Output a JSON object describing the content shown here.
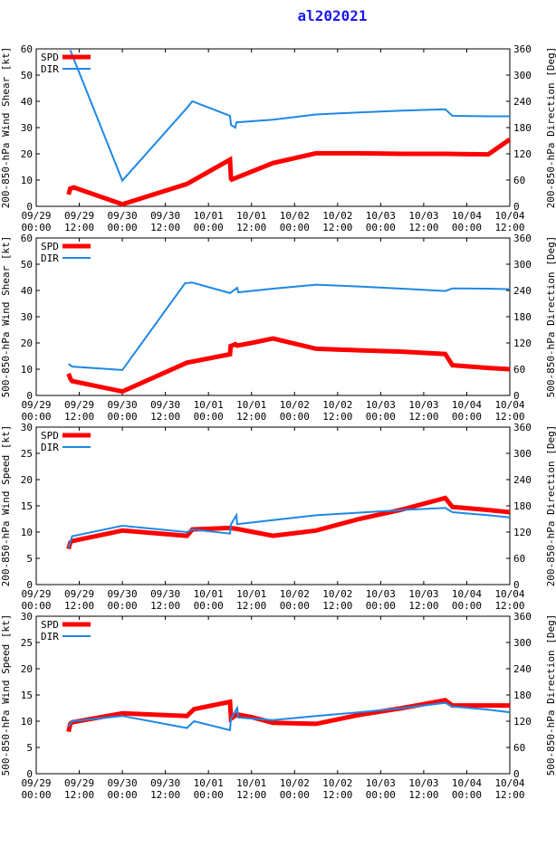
{
  "title": "al202021",
  "colors": {
    "spd": "#ff0000",
    "dir": "#1e88e5",
    "axis": "#000000",
    "title": "#1a1aee"
  },
  "x_tick_labels": [
    [
      "09/29",
      "00:00"
    ],
    [
      "09/29",
      "12:00"
    ],
    [
      "09/30",
      "00:00"
    ],
    [
      "09/30",
      "12:00"
    ],
    [
      "10/01",
      "00:00"
    ],
    [
      "10/01",
      "12:00"
    ],
    [
      "10/02",
      "00:00"
    ],
    [
      "10/02",
      "12:00"
    ],
    [
      "10/03",
      "00:00"
    ],
    [
      "10/03",
      "12:00"
    ],
    [
      "10/04",
      "00:00"
    ],
    [
      "10/04",
      "12:00"
    ]
  ],
  "chart_data": [
    {
      "type": "line",
      "ylabel": "200-850-hPa Wind Shear [kt]",
      "y2label": "200-850-hPa Direction [Deg]",
      "xlim": [
        0,
        132
      ],
      "ylim": [
        0,
        60
      ],
      "yticks": [
        0,
        10,
        20,
        30,
        40,
        50,
        60
      ],
      "y2lim": [
        0,
        360
      ],
      "y2ticks": [
        0,
        60,
        120,
        180,
        240,
        300,
        360
      ],
      "legend": [
        "SPD",
        "DIR"
      ],
      "series": [
        {
          "name": "SPD",
          "axis": "left",
          "x": [
            9,
            9.5,
            10.5,
            24,
            42,
            54,
            54.3,
            54.5,
            66,
            78,
            90,
            102,
            114,
            126,
            132
          ],
          "y": [
            4.5,
            6.8,
            7.2,
            0.8,
            8.5,
            17.8,
            10.5,
            10.2,
            16.5,
            20.2,
            20.2,
            20,
            20,
            19.8,
            25.5
          ]
        },
        {
          "name": "DIR",
          "axis": "left",
          "x": [
            9.5,
            24,
            42,
            43.5,
            54,
            54.3,
            55.5,
            55.8,
            66,
            78,
            90,
            102,
            114,
            116,
            126,
            132
          ],
          "y": [
            59.5,
            9.8,
            37.5,
            40,
            34.5,
            31,
            30,
            32,
            33,
            35,
            35.8,
            36.5,
            37,
            34.5,
            34.3,
            34.3
          ]
        }
      ]
    },
    {
      "type": "line",
      "ylabel": "500-850-hPa Wind Shear [kt]",
      "y2label": "500-850-hPa Direction [Deg]",
      "xlim": [
        0,
        132
      ],
      "ylim": [
        0,
        60
      ],
      "yticks": [
        0,
        10,
        20,
        30,
        40,
        50,
        60
      ],
      "y2lim": [
        0,
        360
      ],
      "y2ticks": [
        0,
        60,
        120,
        180,
        240,
        300,
        360
      ],
      "legend": [
        "SPD",
        "DIR"
      ],
      "series": [
        {
          "name": "SPD",
          "axis": "left",
          "x": [
            9,
            9.5,
            10,
            24,
            42,
            54,
            54.2,
            55.5,
            56,
            60,
            66,
            78,
            90,
            102,
            114,
            116,
            126,
            132
          ],
          "y": [
            8.3,
            6.5,
            5.5,
            1.5,
            12.5,
            15.7,
            18.8,
            19.5,
            19,
            20,
            21.7,
            17.8,
            17.2,
            16.7,
            15.8,
            11.5,
            10.5,
            10
          ]
        },
        {
          "name": "DIR",
          "axis": "left",
          "x": [
            9,
            10,
            24,
            41.5,
            43.5,
            54,
            56,
            56.3,
            66,
            78,
            90,
            102,
            114,
            116,
            126,
            132
          ],
          "y": [
            12,
            11,
            9.7,
            42.8,
            43,
            39,
            41,
            39.3,
            40.7,
            42.2,
            41.5,
            40.7,
            39.8,
            40.8,
            40.7,
            40.5
          ]
        }
      ]
    },
    {
      "type": "line",
      "ylabel": "200-850-hPa Wind Speed [kt]",
      "y2label": "200-850-hPa Direction [Deg]",
      "xlim": [
        0,
        132
      ],
      "ylim": [
        0,
        30
      ],
      "yticks": [
        0,
        5,
        10,
        15,
        20,
        25,
        30
      ],
      "y2lim": [
        0,
        360
      ],
      "y2ticks": [
        0,
        60,
        120,
        180,
        240,
        300,
        360
      ],
      "legend": [
        "SPD",
        "DIR"
      ],
      "series": [
        {
          "name": "SPD",
          "axis": "left",
          "x": [
            9,
            9.5,
            10,
            24,
            42,
            43.5,
            54,
            56,
            66,
            78,
            90,
            102,
            114,
            116,
            126,
            132
          ],
          "y": [
            6.8,
            8,
            8.3,
            10.3,
            9.3,
            10.5,
            10.8,
            10.6,
            9.3,
            10.3,
            12.5,
            14.3,
            16.5,
            14.8,
            14.2,
            13.8
          ]
        },
        {
          "name": "DIR",
          "axis": "left",
          "x": [
            9,
            10,
            24,
            42,
            43.5,
            54,
            54.3,
            55.8,
            56,
            66,
            78,
            90,
            102,
            114,
            116,
            126,
            132
          ],
          "y": [
            7,
            9.2,
            11.2,
            10,
            10.5,
            9.7,
            11.5,
            13.2,
            11.5,
            12.3,
            13.2,
            13.7,
            14.2,
            14.6,
            13.8,
            13.2,
            12.8
          ]
        }
      ]
    },
    {
      "type": "line",
      "ylabel": "500-850-hPa Wind Speed [kt]",
      "y2label": "500-850-hPa Direction [Deg]",
      "xlim": [
        0,
        132
      ],
      "ylim": [
        0,
        30
      ],
      "yticks": [
        0,
        5,
        10,
        15,
        20,
        25,
        30
      ],
      "y2lim": [
        0,
        360
      ],
      "y2ticks": [
        0,
        60,
        120,
        180,
        240,
        300,
        360
      ],
      "legend": [
        "SPD",
        "DIR"
      ],
      "series": [
        {
          "name": "SPD",
          "axis": "left",
          "x": [
            9,
            9.5,
            10,
            24,
            42,
            44,
            54,
            54.3,
            56,
            60,
            66,
            78,
            90,
            102,
            114,
            116,
            126,
            132
          ],
          "y": [
            8,
            9.5,
            9.8,
            11.5,
            11,
            12.3,
            13.7,
            10.5,
            11.3,
            10.8,
            9.7,
            9.5,
            11.2,
            12.5,
            14,
            13,
            13,
            13
          ]
        },
        {
          "name": "DIR",
          "axis": "left",
          "x": [
            9,
            10,
            24,
            42,
            44,
            54,
            54.3,
            56,
            56.3,
            60,
            66,
            78,
            90,
            102,
            114,
            116,
            126,
            132
          ],
          "y": [
            9,
            10,
            11,
            8.7,
            10,
            8.3,
            10.5,
            12.5,
            10.7,
            10.5,
            10.2,
            11,
            11.7,
            12.5,
            13.5,
            12.8,
            12.2,
            11.7
          ]
        }
      ]
    }
  ]
}
